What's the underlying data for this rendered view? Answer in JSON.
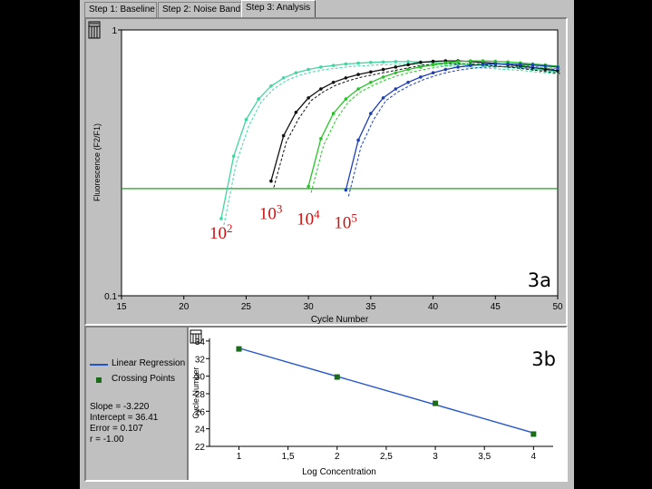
{
  "tabs": [
    {
      "label": "Step 1: Baseline",
      "active": false
    },
    {
      "label": "Step 2: Noise Band",
      "active": false
    },
    {
      "label": "Step 3: Analysis",
      "active": true
    }
  ],
  "colors": {
    "background": "#000000",
    "window": "#c0c0c0",
    "threshold": "#1aa51a",
    "regression_line": "#2255cc",
    "crossing_points": "#1b6b1b",
    "dilution_labels": "#cc1111"
  },
  "icons": [
    "chart-settings-icon",
    "chart-settings-icon"
  ],
  "chart_data": [
    {
      "id": "3a",
      "panel_label": "3a",
      "type": "line",
      "xlabel": "Cycle Number",
      "ylabel": "Fluorescence (F2/F1)",
      "xlim": [
        15,
        50
      ],
      "ylim": [
        0.1,
        1
      ],
      "yscale": "log",
      "xticks": [
        15,
        20,
        25,
        30,
        35,
        40,
        45,
        50
      ],
      "yticks": [
        0.1,
        1
      ],
      "grid": false,
      "threshold": 0.253,
      "series": [
        {
          "label_base": "10",
          "label_exp": "2",
          "color": "#3fd6a0",
          "x": [
            23,
            24,
            25,
            26,
            27,
            28,
            29,
            30,
            31,
            32,
            33,
            34,
            35,
            36,
            37,
            38,
            39,
            40,
            41,
            42,
            43,
            44,
            45,
            46,
            47,
            48,
            49,
            50
          ],
          "y": [
            0.195,
            0.335,
            0.46,
            0.55,
            0.615,
            0.66,
            0.69,
            0.71,
            0.725,
            0.735,
            0.745,
            0.75,
            0.755,
            0.758,
            0.76,
            0.76,
            0.758,
            0.755,
            0.75,
            0.745,
            0.74,
            0.735,
            0.73,
            0.725,
            0.72,
            0.712,
            0.705,
            0.698
          ]
        },
        {
          "label_base": "10",
          "label_exp": "3",
          "color": "#111111",
          "x": [
            27,
            28,
            29,
            30,
            31,
            32,
            33,
            34,
            35,
            36,
            37,
            38,
            39,
            40,
            41,
            42,
            43,
            44,
            45,
            46,
            47,
            48,
            49,
            50
          ],
          "y": [
            0.27,
            0.4,
            0.49,
            0.555,
            0.6,
            0.635,
            0.66,
            0.68,
            0.695,
            0.71,
            0.725,
            0.74,
            0.755,
            0.762,
            0.765,
            0.765,
            0.76,
            0.755,
            0.748,
            0.74,
            0.732,
            0.722,
            0.712,
            0.702
          ]
        },
        {
          "label_base": "10",
          "label_exp": "4",
          "color": "#27c427",
          "x": [
            30,
            31,
            32,
            33,
            34,
            35,
            36,
            37,
            38,
            39,
            40,
            41,
            42,
            43,
            44,
            45,
            46,
            47,
            48,
            49,
            50
          ],
          "y": [
            0.258,
            0.39,
            0.485,
            0.55,
            0.6,
            0.635,
            0.665,
            0.69,
            0.71,
            0.725,
            0.74,
            0.752,
            0.76,
            0.765,
            0.765,
            0.762,
            0.758,
            0.752,
            0.745,
            0.738,
            0.73
          ]
        },
        {
          "label_base": "10",
          "label_exp": "5",
          "color": "#1d3fb5",
          "x": [
            33,
            34,
            35,
            36,
            37,
            38,
            39,
            40,
            41,
            42,
            43,
            44,
            45,
            46,
            47,
            48,
            49,
            50
          ],
          "y": [
            0.25,
            0.385,
            0.485,
            0.555,
            0.6,
            0.635,
            0.665,
            0.69,
            0.71,
            0.725,
            0.735,
            0.742,
            0.745,
            0.745,
            0.742,
            0.738,
            0.732,
            0.725
          ]
        }
      ]
    },
    {
      "id": "3b",
      "panel_label": "3b",
      "type": "scatter",
      "xlabel": "Log Concentration",
      "ylabel": "Cycle Number",
      "xlim": [
        0.7,
        4.2
      ],
      "ylim": [
        22,
        34.3
      ],
      "xticks": [
        "1",
        "1,5",
        "2",
        "2,5",
        "3",
        "3,5",
        "4"
      ],
      "xtick_values": [
        1,
        1.5,
        2,
        2.5,
        3,
        3.5,
        4
      ],
      "yticks": [
        22,
        24,
        26,
        28,
        30,
        32,
        34
      ],
      "grid": false,
      "points": {
        "x": [
          1,
          2,
          3,
          4
        ],
        "y": [
          33.1,
          29.9,
          26.9,
          23.4
        ]
      },
      "regression": {
        "slope": -3.22,
        "intercept": 36.41
      },
      "legend": [
        {
          "label": "Linear Regression",
          "marker": "line"
        },
        {
          "label": "Crossing Points",
          "marker": "square"
        }
      ],
      "stats": [
        "Slope = -3.220",
        "Intercept = 36.41",
        "Error = 0.107",
        "r = -1.00"
      ]
    }
  ]
}
